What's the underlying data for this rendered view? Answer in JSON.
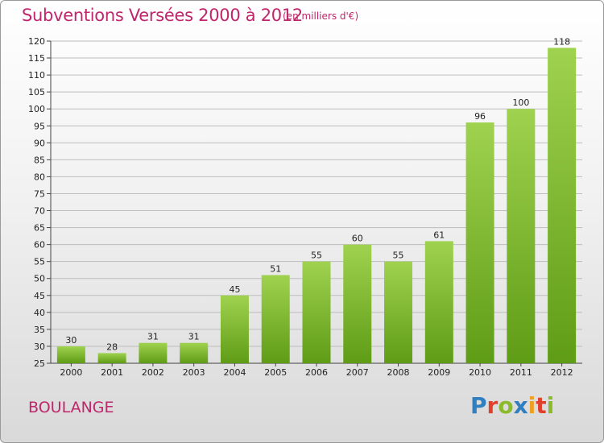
{
  "header": {
    "title": "Subventions Versées 2000 à 2012",
    "unit_note": "(en milliers d'€)"
  },
  "commune": "BOULANGE",
  "logo": {
    "text": "Proxiti",
    "letters": [
      {
        "char": "P",
        "color": "#2f7fc1"
      },
      {
        "char": "r",
        "color": "#e0402c"
      },
      {
        "char": "o",
        "color": "#8bbb2a"
      },
      {
        "char": "x",
        "color": "#2f7fc1"
      },
      {
        "char": "i",
        "color": "#f0a020"
      },
      {
        "char": "t",
        "color": "#e0402c"
      },
      {
        "char": "i",
        "color": "#8bbb2a"
      }
    ]
  },
  "colors": {
    "bar_light": "#9fd24f",
    "bar_dark": "#5f9c16",
    "title": "#c0266b"
  },
  "chart_data": {
    "type": "bar",
    "categories": [
      "2000",
      "2001",
      "2002",
      "2003",
      "2004",
      "2005",
      "2006",
      "2007",
      "2008",
      "2009",
      "2010",
      "2011",
      "2012"
    ],
    "values": [
      30,
      28,
      31,
      31,
      45,
      51,
      55,
      60,
      55,
      61,
      96,
      100,
      118
    ],
    "ylim": [
      25,
      120
    ],
    "yticks": [
      25,
      30,
      35,
      40,
      45,
      50,
      55,
      60,
      65,
      70,
      75,
      80,
      85,
      90,
      95,
      100,
      105,
      110,
      115,
      120
    ],
    "grid": true,
    "legend": "none"
  }
}
